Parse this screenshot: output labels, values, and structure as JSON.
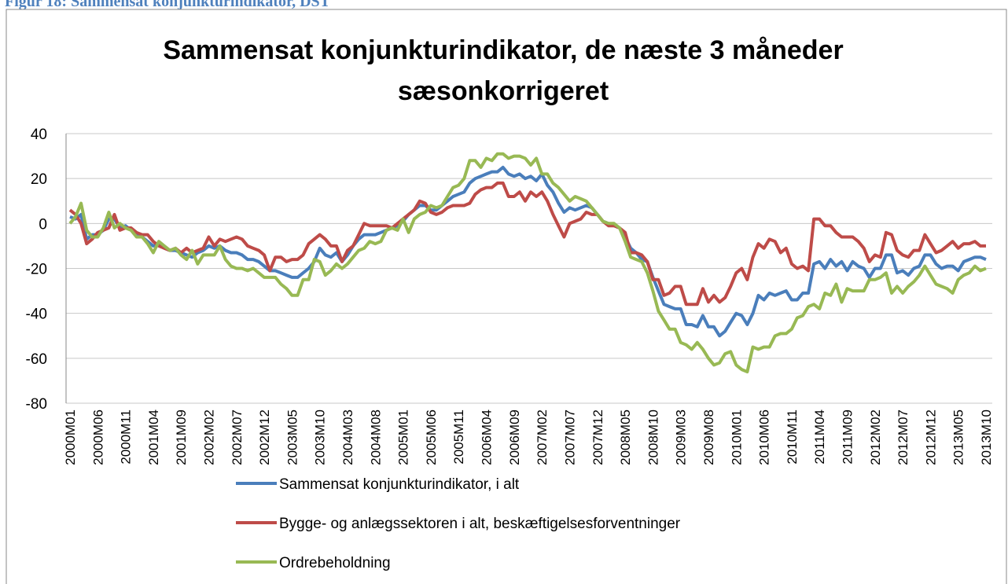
{
  "caption": "Figur 18: Sammensat konjunkturindikator, DST",
  "chart_data": {
    "type": "line",
    "title": "Sammensat konjunkturindikator, de næste 3 måneder sæsonkorrigeret",
    "categories": [
      "2000M01",
      null,
      null,
      null,
      null,
      "2000M06",
      null,
      null,
      null,
      null,
      "2000M11",
      null,
      null,
      null,
      null,
      "2001M04",
      null,
      null,
      null,
      null,
      "2001M09",
      null,
      null,
      null,
      null,
      "2002M02",
      null,
      null,
      null,
      null,
      "2002M07",
      null,
      null,
      null,
      null,
      "2002M12",
      null,
      null,
      null,
      null,
      "2003M05",
      null,
      null,
      null,
      null,
      "2003M10",
      null,
      null,
      null,
      null,
      "2004M03",
      null,
      null,
      null,
      null,
      "2004M08",
      null,
      null,
      null,
      null,
      "2005M01",
      null,
      null,
      null,
      null,
      "2005M06",
      null,
      null,
      null,
      null,
      "2005M11",
      null,
      null,
      null,
      null,
      "2006M04",
      null,
      null,
      null,
      null,
      "2006M09",
      null,
      null,
      null,
      null,
      "2007M02",
      null,
      null,
      null,
      null,
      "2007M07",
      null,
      null,
      null,
      null,
      "2007M12",
      null,
      null,
      null,
      null,
      "2008M05",
      null,
      null,
      null,
      null,
      "2008M10",
      null,
      null,
      null,
      null,
      "2009M03",
      null,
      null,
      null,
      null,
      "2009M08",
      null,
      null,
      null,
      null,
      "2010M01",
      null,
      null,
      null,
      null,
      "2010M06",
      null,
      null,
      null,
      null,
      "2010M11",
      null,
      null,
      null,
      null,
      "2011M04",
      null,
      null,
      null,
      null,
      "2011M09",
      null,
      null,
      null,
      null,
      "2012M02",
      null,
      null,
      null,
      null,
      "2012M07",
      null,
      null,
      null,
      null,
      "2012M12",
      null,
      null,
      null,
      null,
      "2013M05",
      null,
      null,
      null,
      null,
      "2013M10"
    ],
    "series": [
      {
        "name": "Sammensat konjunkturindikator, i alt",
        "color": "#4a7ebb",
        "values": [
          3,
          2,
          4,
          -7,
          -5,
          -5,
          -3,
          2,
          2,
          -2,
          -1,
          -3,
          -5,
          -6,
          -8,
          -10,
          -9,
          -11,
          -12,
          -12,
          -13,
          -14,
          -15,
          -13,
          -12,
          -10,
          -11,
          -10,
          -12,
          -13,
          -13,
          -14,
          -16,
          -16,
          -17,
          -19,
          -21,
          -21,
          -22,
          -23,
          -24,
          -24,
          -22,
          -20,
          -17,
          -11,
          -14,
          -15,
          -13,
          -17,
          -14,
          -10,
          -7,
          -5,
          -5,
          -5,
          -4,
          -3,
          -2,
          -1,
          1,
          4,
          6,
          8,
          8,
          6,
          6,
          8,
          10,
          12,
          13,
          14,
          18,
          20,
          21,
          22,
          23,
          23,
          25,
          22,
          21,
          22,
          20,
          21,
          19,
          22,
          17,
          14,
          9,
          5,
          7,
          6,
          7,
          8,
          7,
          4,
          1,
          0,
          -1,
          -2,
          -6,
          -11,
          -13,
          -16,
          -17,
          -24,
          -30,
          -36,
          -37,
          -38,
          -38,
          -45,
          -45,
          -46,
          -41,
          -46,
          -46,
          -50,
          -48,
          -44,
          -40,
          -41,
          -45,
          -40,
          -32,
          -34,
          -31,
          -32,
          -31,
          -30,
          -34,
          -34,
          -31,
          -31,
          -18,
          -17,
          -20,
          -16,
          -19,
          -17,
          -21,
          -17,
          -19,
          -20,
          -24,
          -20,
          -20,
          -14,
          -14,
          -22,
          -21,
          -23,
          -20,
          -19,
          -14,
          -14,
          -18,
          -20,
          -19,
          -19,
          -21,
          -17,
          -16,
          -15,
          -15,
          -16
        ]
      },
      {
        "name": "Bygge- og anlægssektoren i alt, beskæftigelsesforventninger",
        "color": "#be4b48",
        "values": [
          6,
          4,
          0,
          -9,
          -7,
          -4,
          -3,
          -2,
          4,
          -3,
          -2,
          -2,
          -4,
          -5,
          -5,
          -8,
          -10,
          -11,
          -12,
          -11,
          -13,
          -11,
          -13,
          -12,
          -11,
          -6,
          -10,
          -7,
          -8,
          -7,
          -6,
          -7,
          -10,
          -11,
          -12,
          -14,
          -21,
          -15,
          -15,
          -17,
          -16,
          -16,
          -14,
          -9,
          -7,
          -5,
          -7,
          -10,
          -10,
          -17,
          -12,
          -10,
          -5,
          0,
          -1,
          -1,
          -1,
          -1,
          -2,
          0,
          2,
          4,
          6,
          10,
          9,
          5,
          4,
          5,
          7,
          8,
          8,
          8,
          9,
          13,
          15,
          16,
          16,
          18,
          18,
          12,
          12,
          14,
          10,
          14,
          12,
          14,
          10,
          4,
          -1,
          -6,
          0,
          1,
          2,
          5,
          4,
          4,
          1,
          -1,
          -1,
          -2,
          -4,
          -13,
          -13,
          -14,
          -17,
          -25,
          -25,
          -32,
          -31,
          -28,
          -28,
          -36,
          -36,
          -36,
          -29,
          -35,
          -32,
          -35,
          -33,
          -28,
          -22,
          -20,
          -25,
          -15,
          -9,
          -11,
          -7,
          -8,
          -13,
          -11,
          -18,
          -20,
          -19,
          -21,
          2,
          2,
          -1,
          -1,
          -4,
          -6,
          -6,
          -6,
          -8,
          -11,
          -17,
          -14,
          -15,
          -4,
          -5,
          -12,
          -14,
          -15,
          -12,
          -12,
          -5,
          -9,
          -13,
          -12,
          -10,
          -8,
          -11,
          -9,
          -9,
          -8,
          -10,
          -10
        ]
      },
      {
        "name": "Ordrebeholdning",
        "color": "#98b954",
        "values": [
          0,
          3,
          9,
          -3,
          -6,
          -6,
          -2,
          5,
          -2,
          0,
          -2,
          -3,
          -6,
          -6,
          -9,
          -13,
          -8,
          -10,
          -12,
          -11,
          -14,
          -16,
          -12,
          -18,
          -14,
          -14,
          -14,
          -10,
          -16,
          -19,
          -20,
          -20,
          -21,
          -20,
          -22,
          -24,
          -24,
          -24,
          -27,
          -29,
          -32,
          -32,
          -25,
          -25,
          -16,
          -17,
          -23,
          -21,
          -18,
          -20,
          -18,
          -15,
          -12,
          -11,
          -8,
          -9,
          -8,
          -3,
          -2,
          -3,
          2,
          -4,
          2,
          4,
          5,
          8,
          7,
          8,
          12,
          16,
          17,
          20,
          28,
          28,
          25,
          29,
          28,
          31,
          31,
          29,
          30,
          30,
          29,
          26,
          29,
          22,
          22,
          18,
          16,
          13,
          10,
          12,
          11,
          10,
          7,
          4,
          1,
          0,
          0,
          -2,
          -8,
          -15,
          -16,
          -17,
          -22,
          -30,
          -39,
          -43,
          -47,
          -47,
          -53,
          -54,
          -56,
          -53,
          -56,
          -60,
          -63,
          -62,
          -58,
          -57,
          -63,
          -65,
          -66,
          -55,
          -56,
          -55,
          -55,
          -50,
          -49,
          -49,
          -47,
          -42,
          -41,
          -37,
          -36,
          -38,
          -31,
          -32,
          -27,
          -35,
          -29,
          -30,
          -30,
          -30,
          -25,
          -25,
          -24,
          -22,
          -31,
          -28,
          -31,
          -28,
          -26,
          -23,
          -19,
          -23,
          -27,
          -28,
          -29,
          -31,
          -25,
          -23,
          -22,
          -19,
          -21,
          -20
        ]
      }
    ],
    "ylim": [
      -80,
      40
    ],
    "yticks": [
      -80,
      -60,
      -40,
      -20,
      0,
      20,
      40
    ],
    "grid": true,
    "legend": "bottom"
  }
}
